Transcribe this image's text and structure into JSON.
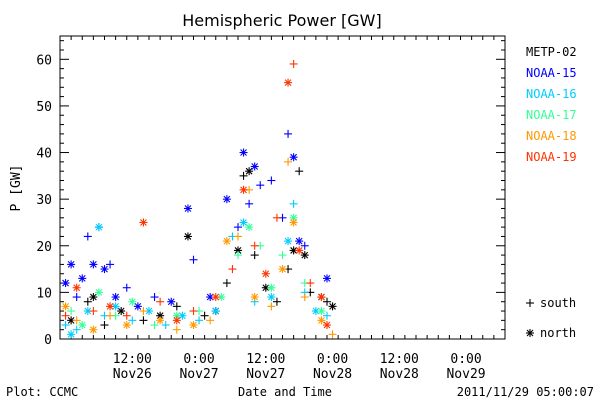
{
  "chart_data": {
    "type": "scatter",
    "title": "Hemispheric Power [GW]",
    "ylabel": "P [GW]",
    "xlabel": "Date and Time",
    "ylim": [
      0,
      65
    ],
    "yticks": [
      0,
      10,
      20,
      30,
      40,
      50,
      60
    ],
    "xlim": [
      "2011-11-25 23:00",
      "2011-11-29 07:00"
    ],
    "xticks": [
      {
        "top": "12:00",
        "bottom": "Nov26",
        "t": "2011-11-26 12:00"
      },
      {
        "top": "0:00",
        "bottom": "Nov27",
        "t": "2011-11-27 00:00"
      },
      {
        "top": "12:00",
        "bottom": "Nov27",
        "t": "2011-11-27 12:00"
      },
      {
        "top": "0:00",
        "bottom": "Nov28",
        "t": "2011-11-28 00:00"
      },
      {
        "top": "12:00",
        "bottom": "Nov28",
        "t": "2011-11-28 12:00"
      },
      {
        "top": "0:00",
        "bottom": "Nov29",
        "t": "2011-11-29 00:00"
      }
    ],
    "marker_legend": [
      {
        "symbol": "+",
        "label": "south"
      },
      {
        "symbol": "*",
        "label": "north"
      }
    ],
    "series": [
      {
        "name": "METP-02",
        "color": "#000000",
        "points": [
          {
            "t": "2011-11-26 01:00",
            "v": 4,
            "m": "*"
          },
          {
            "t": "2011-11-26 04:00",
            "v": 8,
            "m": "+"
          },
          {
            "t": "2011-11-26 05:00",
            "v": 9,
            "m": "*"
          },
          {
            "t": "2011-11-26 07:00",
            "v": 3,
            "m": "+"
          },
          {
            "t": "2011-11-26 10:00",
            "v": 6,
            "m": "*"
          },
          {
            "t": "2011-11-26 14:00",
            "v": 4,
            "m": "+"
          },
          {
            "t": "2011-11-26 17:00",
            "v": 5,
            "m": "*"
          },
          {
            "t": "2011-11-26 20:00",
            "v": 7,
            "m": "+"
          },
          {
            "t": "2011-11-26 22:00",
            "v": 22,
            "m": "*"
          },
          {
            "t": "2011-11-27 01:00",
            "v": 5,
            "m": "+"
          },
          {
            "t": "2011-11-27 03:00",
            "v": 6,
            "m": "*"
          },
          {
            "t": "2011-11-27 05:00",
            "v": 12,
            "m": "+"
          },
          {
            "t": "2011-11-27 07:00",
            "v": 19,
            "m": "*"
          },
          {
            "t": "2011-11-27 08:00",
            "v": 35,
            "m": "+"
          },
          {
            "t": "2011-11-27 09:00",
            "v": 36,
            "m": "*"
          },
          {
            "t": "2011-11-27 10:00",
            "v": 18,
            "m": "+"
          },
          {
            "t": "2011-11-27 12:00",
            "v": 11,
            "m": "*"
          },
          {
            "t": "2011-11-27 14:00",
            "v": 8,
            "m": "+"
          },
          {
            "t": "2011-11-27 16:00",
            "v": 15,
            "m": "+"
          },
          {
            "t": "2011-11-27 17:00",
            "v": 19,
            "m": "*"
          },
          {
            "t": "2011-11-27 18:00",
            "v": 36,
            "m": "+"
          },
          {
            "t": "2011-11-27 19:00",
            "v": 18,
            "m": "*"
          },
          {
            "t": "2011-11-27 20:00",
            "v": 10,
            "m": "+"
          },
          {
            "t": "2011-11-27 22:00",
            "v": 9,
            "m": "*"
          },
          {
            "t": "2011-11-27 23:00",
            "v": 8,
            "m": "+"
          },
          {
            "t": "2011-11-28 00:00",
            "v": 7,
            "m": "*"
          }
        ]
      },
      {
        "name": "NOAA-15",
        "color": "#0000ff",
        "points": [
          {
            "t": "2011-11-26 00:00",
            "v": 12,
            "m": "*"
          },
          {
            "t": "2011-11-26 01:00",
            "v": 16,
            "m": "*"
          },
          {
            "t": "2011-11-26 02:00",
            "v": 9,
            "m": "+"
          },
          {
            "t": "2011-11-26 03:00",
            "v": 13,
            "m": "*"
          },
          {
            "t": "2011-11-26 04:00",
            "v": 22,
            "m": "+"
          },
          {
            "t": "2011-11-26 05:00",
            "v": 16,
            "m": "*"
          },
          {
            "t": "2011-11-26 06:00",
            "v": 24,
            "m": "+"
          },
          {
            "t": "2011-11-26 07:00",
            "v": 15,
            "m": "*"
          },
          {
            "t": "2011-11-26 08:00",
            "v": 16,
            "m": "+"
          },
          {
            "t": "2011-11-26 09:00",
            "v": 9,
            "m": "*"
          },
          {
            "t": "2011-11-26 11:00",
            "v": 11,
            "m": "+"
          },
          {
            "t": "2011-11-26 13:00",
            "v": 7,
            "m": "*"
          },
          {
            "t": "2011-11-26 16:00",
            "v": 9,
            "m": "+"
          },
          {
            "t": "2011-11-26 19:00",
            "v": 8,
            "m": "*"
          },
          {
            "t": "2011-11-26 22:00",
            "v": 28,
            "m": "*"
          },
          {
            "t": "2011-11-26 23:00",
            "v": 17,
            "m": "+"
          },
          {
            "t": "2011-11-27 02:00",
            "v": 9,
            "m": "*"
          },
          {
            "t": "2011-11-27 05:00",
            "v": 30,
            "m": "*"
          },
          {
            "t": "2011-11-27 07:00",
            "v": 24,
            "m": "+"
          },
          {
            "t": "2011-11-27 08:00",
            "v": 40,
            "m": "*"
          },
          {
            "t": "2011-11-27 09:00",
            "v": 29,
            "m": "+"
          },
          {
            "t": "2011-11-27 10:00",
            "v": 37,
            "m": "*"
          },
          {
            "t": "2011-11-27 11:00",
            "v": 33,
            "m": "+"
          },
          {
            "t": "2011-11-27 13:00",
            "v": 34,
            "m": "+"
          },
          {
            "t": "2011-11-27 15:00",
            "v": 26,
            "m": "+"
          },
          {
            "t": "2011-11-27 16:00",
            "v": 44,
            "m": "+"
          },
          {
            "t": "2011-11-27 17:00",
            "v": 39,
            "m": "*"
          },
          {
            "t": "2011-11-27 18:00",
            "v": 21,
            "m": "*"
          },
          {
            "t": "2011-11-27 19:00",
            "v": 20,
            "m": "+"
          },
          {
            "t": "2011-11-27 23:00",
            "v": 13,
            "m": "*"
          }
        ]
      },
      {
        "name": "NOAA-16",
        "color": "#00ccff",
        "points": [
          {
            "t": "2011-11-26 00:00",
            "v": 3,
            "m": "+"
          },
          {
            "t": "2011-11-26 01:00",
            "v": 1,
            "m": "*"
          },
          {
            "t": "2011-11-26 02:00",
            "v": 2,
            "m": "+"
          },
          {
            "t": "2011-11-26 04:00",
            "v": 6,
            "m": "*"
          },
          {
            "t": "2011-11-26 06:00",
            "v": 24,
            "m": "*"
          },
          {
            "t": "2011-11-26 07:00",
            "v": 5,
            "m": "+"
          },
          {
            "t": "2011-11-26 09:00",
            "v": 7,
            "m": "*"
          },
          {
            "t": "2011-11-26 12:00",
            "v": 4,
            "m": "+"
          },
          {
            "t": "2011-11-26 15:00",
            "v": 6,
            "m": "*"
          },
          {
            "t": "2011-11-26 18:00",
            "v": 3,
            "m": "+"
          },
          {
            "t": "2011-11-26 21:00",
            "v": 5,
            "m": "*"
          },
          {
            "t": "2011-11-27 00:00",
            "v": 4,
            "m": "+"
          },
          {
            "t": "2011-11-27 03:00",
            "v": 6,
            "m": "*"
          },
          {
            "t": "2011-11-27 06:00",
            "v": 22,
            "m": "+"
          },
          {
            "t": "2011-11-27 08:00",
            "v": 25,
            "m": "*"
          },
          {
            "t": "2011-11-27 10:00",
            "v": 8,
            "m": "+"
          },
          {
            "t": "2011-11-27 13:00",
            "v": 9,
            "m": "*"
          },
          {
            "t": "2011-11-27 16:00",
            "v": 21,
            "m": "*"
          },
          {
            "t": "2011-11-27 17:00",
            "v": 29,
            "m": "+"
          },
          {
            "t": "2011-11-27 19:00",
            "v": 10,
            "m": "+"
          },
          {
            "t": "2011-11-27 21:00",
            "v": 6,
            "m": "*"
          },
          {
            "t": "2011-11-27 23:00",
            "v": 5,
            "m": "+"
          }
        ]
      },
      {
        "name": "NOAA-17",
        "color": "#33ff99",
        "points": [
          {
            "t": "2011-11-26 01:00",
            "v": 6,
            "m": "+"
          },
          {
            "t": "2011-11-26 03:00",
            "v": 3,
            "m": "*"
          },
          {
            "t": "2011-11-26 06:00",
            "v": 10,
            "m": "*"
          },
          {
            "t": "2011-11-26 09:00",
            "v": 5,
            "m": "+"
          },
          {
            "t": "2011-11-26 12:00",
            "v": 8,
            "m": "*"
          },
          {
            "t": "2011-11-26 16:00",
            "v": 3,
            "m": "+"
          },
          {
            "t": "2011-11-26 20:00",
            "v": 5,
            "m": "*"
          },
          {
            "t": "2011-11-27 00:00",
            "v": 6,
            "m": "+"
          },
          {
            "t": "2011-11-27 04:00",
            "v": 9,
            "m": "*"
          },
          {
            "t": "2011-11-27 07:00",
            "v": 18,
            "m": "+"
          },
          {
            "t": "2011-11-27 09:00",
            "v": 24,
            "m": "*"
          },
          {
            "t": "2011-11-27 11:00",
            "v": 20,
            "m": "+"
          },
          {
            "t": "2011-11-27 13:00",
            "v": 11,
            "m": "*"
          },
          {
            "t": "2011-11-27 15:00",
            "v": 18,
            "m": "+"
          },
          {
            "t": "2011-11-27 17:00",
            "v": 26,
            "m": "*"
          },
          {
            "t": "2011-11-27 19:00",
            "v": 12,
            "m": "+"
          },
          {
            "t": "2011-11-27 22:00",
            "v": 6,
            "m": "*"
          }
        ]
      },
      {
        "name": "NOAA-18",
        "color": "#ff9900",
        "points": [
          {
            "t": "2011-11-26 00:00",
            "v": 7,
            "m": "*"
          },
          {
            "t": "2011-11-26 02:00",
            "v": 4,
            "m": "+"
          },
          {
            "t": "2011-11-26 05:00",
            "v": 2,
            "m": "*"
          },
          {
            "t": "2011-11-26 08:00",
            "v": 5,
            "m": "+"
          },
          {
            "t": "2011-11-26 11:00",
            "v": 3,
            "m": "*"
          },
          {
            "t": "2011-11-26 14:00",
            "v": 6,
            "m": "+"
          },
          {
            "t": "2011-11-26 17:00",
            "v": 4,
            "m": "*"
          },
          {
            "t": "2011-11-26 20:00",
            "v": 2,
            "m": "+"
          },
          {
            "t": "2011-11-26 23:00",
            "v": 3,
            "m": "*"
          },
          {
            "t": "2011-11-27 02:00",
            "v": 4,
            "m": "+"
          },
          {
            "t": "2011-11-27 05:00",
            "v": 21,
            "m": "*"
          },
          {
            "t": "2011-11-27 07:00",
            "v": 22,
            "m": "+"
          },
          {
            "t": "2011-11-27 09:00",
            "v": 32,
            "m": "+"
          },
          {
            "t": "2011-11-27 10:00",
            "v": 9,
            "m": "*"
          },
          {
            "t": "2011-11-27 13:00",
            "v": 7,
            "m": "+"
          },
          {
            "t": "2011-11-27 15:00",
            "v": 15,
            "m": "*"
          },
          {
            "t": "2011-11-27 16:00",
            "v": 38,
            "m": "+"
          },
          {
            "t": "2011-11-27 17:00",
            "v": 25,
            "m": "*"
          },
          {
            "t": "2011-11-27 19:00",
            "v": 9,
            "m": "+"
          },
          {
            "t": "2011-11-27 22:00",
            "v": 4,
            "m": "*"
          },
          {
            "t": "2011-11-28 00:00",
            "v": 1,
            "m": "+"
          }
        ]
      },
      {
        "name": "NOAA-19",
        "color": "#ff3300",
        "points": [
          {
            "t": "2011-11-26 00:00",
            "v": 5,
            "m": "+"
          },
          {
            "t": "2011-11-26 02:00",
            "v": 11,
            "m": "*"
          },
          {
            "t": "2011-11-26 05:00",
            "v": 6,
            "m": "+"
          },
          {
            "t": "2011-11-26 08:00",
            "v": 7,
            "m": "*"
          },
          {
            "t": "2011-11-26 11:00",
            "v": 5,
            "m": "+"
          },
          {
            "t": "2011-11-26 14:00",
            "v": 25,
            "m": "*"
          },
          {
            "t": "2011-11-26 17:00",
            "v": 8,
            "m": "+"
          },
          {
            "t": "2011-11-26 20:00",
            "v": 4,
            "m": "*"
          },
          {
            "t": "2011-11-26 23:00",
            "v": 6,
            "m": "+"
          },
          {
            "t": "2011-11-27 03:00",
            "v": 9,
            "m": "*"
          },
          {
            "t": "2011-11-27 06:00",
            "v": 15,
            "m": "+"
          },
          {
            "t": "2011-11-27 08:00",
            "v": 32,
            "m": "*"
          },
          {
            "t": "2011-11-27 10:00",
            "v": 20,
            "m": "+"
          },
          {
            "t": "2011-11-27 12:00",
            "v": 14,
            "m": "*"
          },
          {
            "t": "2011-11-27 14:00",
            "v": 26,
            "m": "+"
          },
          {
            "t": "2011-11-27 16:00",
            "v": 55,
            "m": "*"
          },
          {
            "t": "2011-11-27 17:00",
            "v": 59,
            "m": "+"
          },
          {
            "t": "2011-11-27 18:00",
            "v": 19,
            "m": "*"
          },
          {
            "t": "2011-11-27 20:00",
            "v": 12,
            "m": "+"
          },
          {
            "t": "2011-11-27 22:00",
            "v": 9,
            "m": "*"
          },
          {
            "t": "2011-11-27 23:00",
            "v": 3,
            "m": "*"
          }
        ]
      }
    ]
  },
  "footer": {
    "plot_credit": "Plot: CCMC",
    "xlabel": "Date and Time",
    "timestamp": "2011/11/29 05:00:07"
  }
}
